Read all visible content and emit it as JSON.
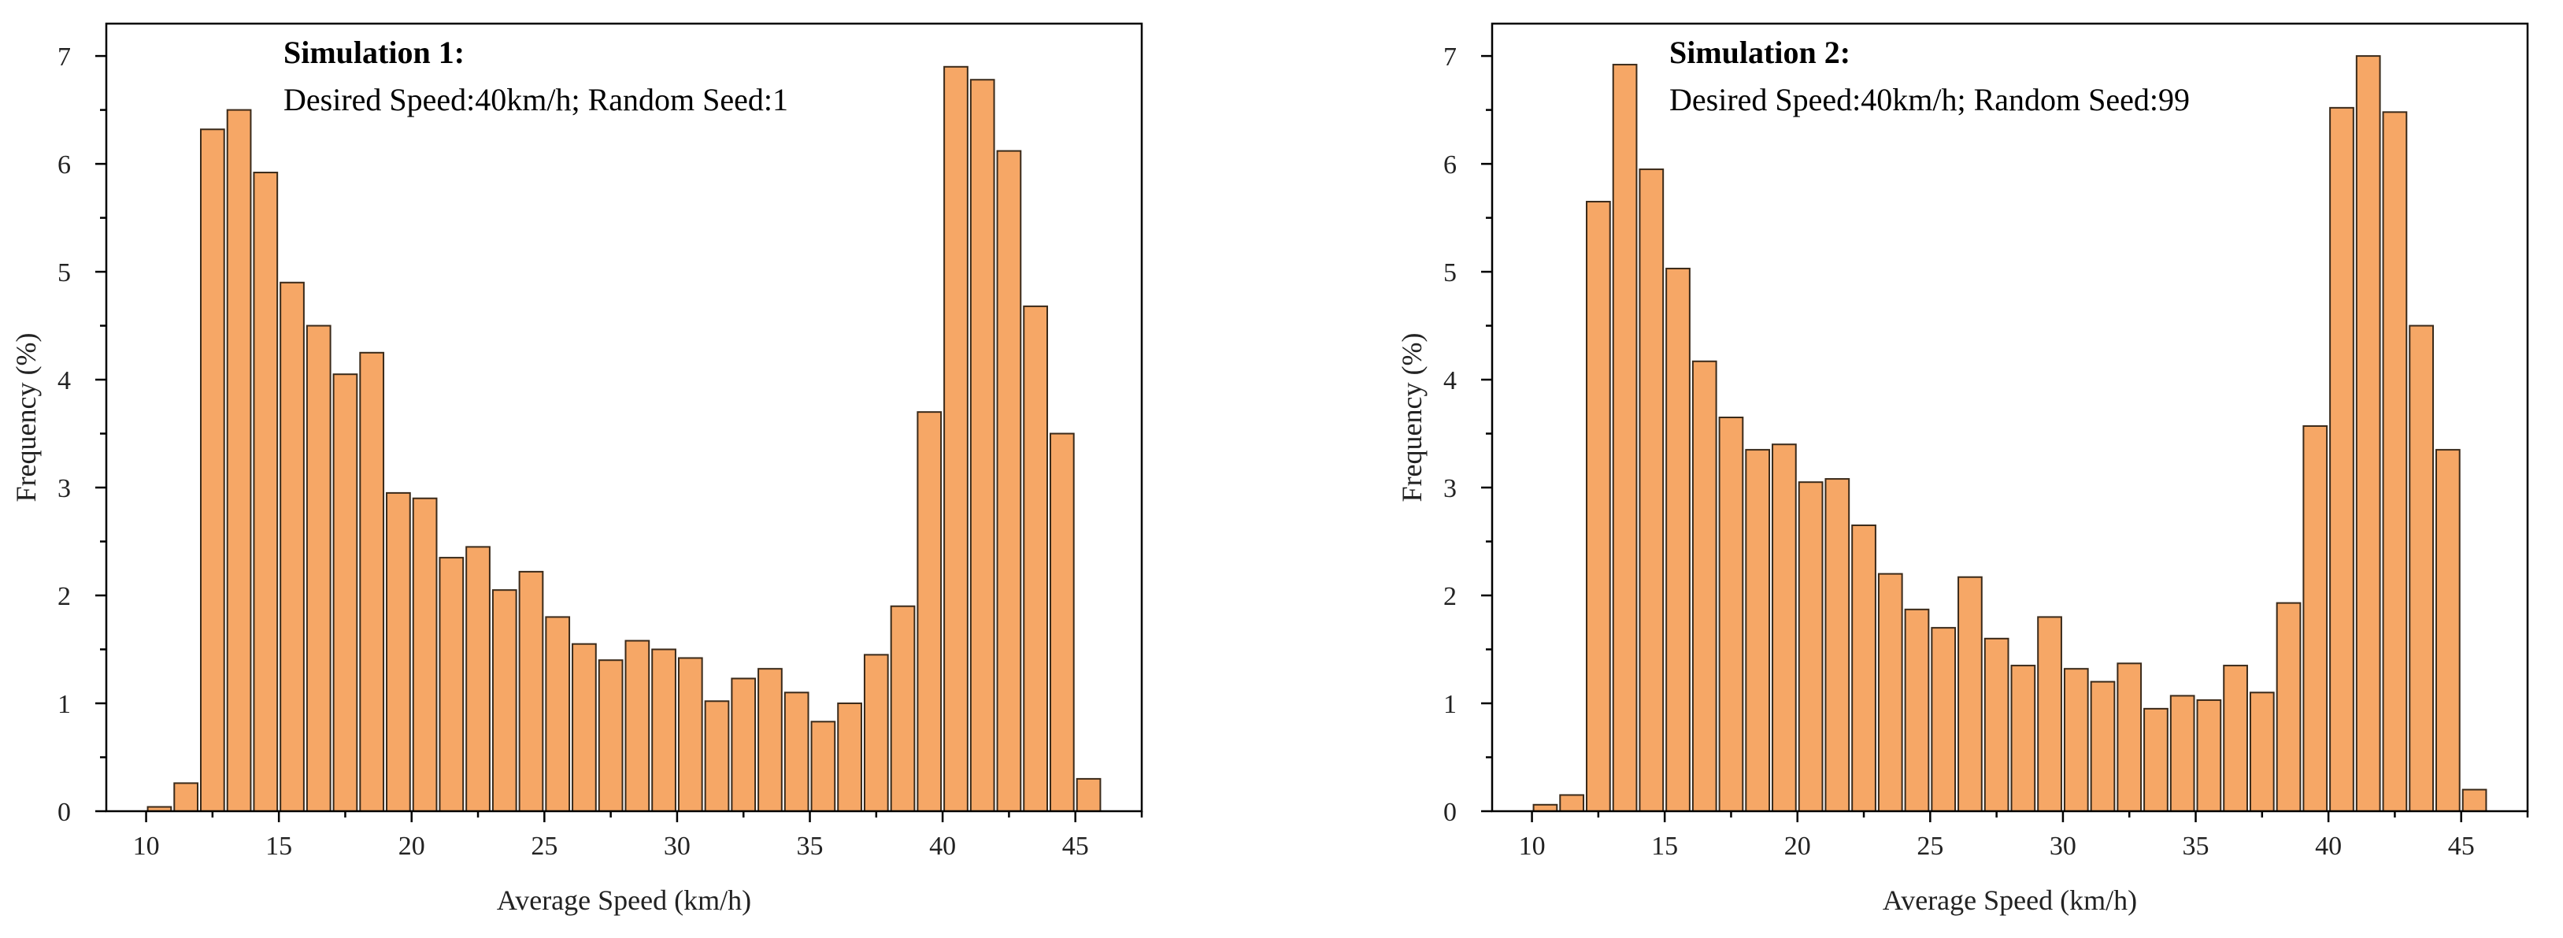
{
  "colors": {
    "bar_fill": "#F6A766",
    "bar_stroke": "#3A2A1A"
  },
  "chart_data": [
    {
      "type": "bar",
      "title": "Simulation 1:",
      "subtitle": "Desired Speed:40km/h; Random Seed:1",
      "xlabel": "Average Speed (km/h)",
      "ylabel": "Frequency (%)",
      "xlim": [
        8.5,
        47.5
      ],
      "ylim": [
        0,
        7.3
      ],
      "xticks": [
        10,
        15,
        20,
        25,
        30,
        35,
        40,
        45
      ],
      "yticks": [
        0,
        1,
        2,
        3,
        4,
        5,
        6,
        7
      ],
      "bin_width": 1,
      "x": [
        10.5,
        11.5,
        12.5,
        13.5,
        14.5,
        15.5,
        16.5,
        17.5,
        18.5,
        19.5,
        20.5,
        21.5,
        22.5,
        23.5,
        24.5,
        25.5,
        26.5,
        27.5,
        28.5,
        29.5,
        30.5,
        31.5,
        32.5,
        33.5,
        34.5,
        35.5,
        36.5,
        37.5,
        38.5,
        39.5,
        40.5,
        41.5,
        42.5,
        43.5,
        44.5,
        45.5
      ],
      "values": [
        0.04,
        0.26,
        6.32,
        6.5,
        5.92,
        4.9,
        4.5,
        4.05,
        4.25,
        2.95,
        2.9,
        2.35,
        2.45,
        2.05,
        2.22,
        1.8,
        1.55,
        1.4,
        1.58,
        1.5,
        1.42,
        1.02,
        1.23,
        1.32,
        1.1,
        0.83,
        1.0,
        1.45,
        1.9,
        3.7,
        6.9,
        6.78,
        6.12,
        4.68,
        3.5,
        0.3
      ]
    },
    {
      "type": "bar",
      "title": "Simulation 2:",
      "subtitle": "Desired Speed:40km/h; Random Seed:99",
      "xlabel": "Average Speed (km/h)",
      "ylabel": "Frequency (%)",
      "xlim": [
        8.5,
        47.5
      ],
      "ylim": [
        0,
        7.3
      ],
      "xticks": [
        10,
        15,
        20,
        25,
        30,
        35,
        40,
        45
      ],
      "yticks": [
        0,
        1,
        2,
        3,
        4,
        5,
        6,
        7
      ],
      "bin_width": 1,
      "x": [
        10.5,
        11.5,
        12.5,
        13.5,
        14.5,
        15.5,
        16.5,
        17.5,
        18.5,
        19.5,
        20.5,
        21.5,
        22.5,
        23.5,
        24.5,
        25.5,
        26.5,
        27.5,
        28.5,
        29.5,
        30.5,
        31.5,
        32.5,
        33.5,
        34.5,
        35.5,
        36.5,
        37.5,
        38.5,
        39.5,
        40.5,
        41.5,
        42.5,
        43.5,
        44.5,
        45.5
      ],
      "values": [
        0.06,
        0.15,
        5.65,
        6.92,
        5.95,
        5.03,
        4.17,
        3.65,
        3.35,
        3.4,
        3.05,
        3.08,
        2.65,
        2.2,
        1.87,
        1.7,
        2.17,
        1.6,
        1.35,
        1.8,
        1.32,
        1.2,
        1.37,
        0.95,
        1.07,
        1.03,
        1.35,
        1.1,
        1.93,
        3.57,
        6.52,
        7.0,
        6.48,
        4.5,
        3.35,
        0.2
      ]
    }
  ]
}
